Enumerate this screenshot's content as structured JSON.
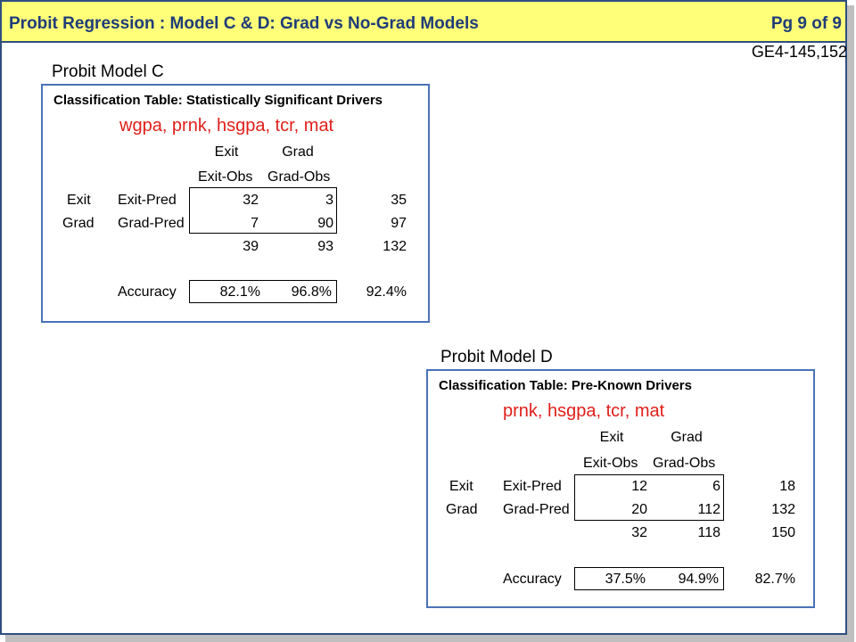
{
  "header": {
    "title": "Probit Regression : Model C & D: Grad vs No-Grad Models",
    "page": "Pg 9 of 9"
  },
  "ref_code": "GE4-145,152",
  "model_c": {
    "label": "Probit Model C",
    "table_title": "Classification Table: Statistically Significant Drivers",
    "drivers": "wgpa, prnk, hsgpa, tcr, mat",
    "col_top": [
      "Exit",
      "Grad"
    ],
    "col_obs": [
      "Exit-Obs",
      "Grad-Obs"
    ],
    "rows": [
      {
        "outcome": "Exit",
        "pred": "Exit-Pred",
        "exit_obs": "32",
        "grad_obs": "3",
        "total": "35"
      },
      {
        "outcome": "Grad",
        "pred": "Grad-Pred",
        "exit_obs": "7",
        "grad_obs": "90",
        "total": "97"
      }
    ],
    "col_totals": [
      "39",
      "93",
      "132"
    ],
    "accuracy_label": "Accuracy",
    "accuracy": [
      "82.1%",
      "96.8%",
      "92.4%"
    ]
  },
  "model_d": {
    "label": "Probit Model D",
    "table_title": "Classification Table: Pre-Known Drivers",
    "drivers": "prnk, hsgpa, tcr, mat",
    "col_top": [
      "Exit",
      "Grad"
    ],
    "col_obs": [
      "Exit-Obs",
      "Grad-Obs"
    ],
    "rows": [
      {
        "outcome": "Exit",
        "pred": "Exit-Pred",
        "exit_obs": "12",
        "grad_obs": "6",
        "total": "18"
      },
      {
        "outcome": "Grad",
        "pred": "Grad-Pred",
        "exit_obs": "20",
        "grad_obs": "112",
        "total": "132"
      }
    ],
    "col_totals": [
      "32",
      "118",
      "150"
    ],
    "accuracy_label": "Accuracy",
    "accuracy": [
      "37.5%",
      "94.9%",
      "82.7%"
    ]
  }
}
